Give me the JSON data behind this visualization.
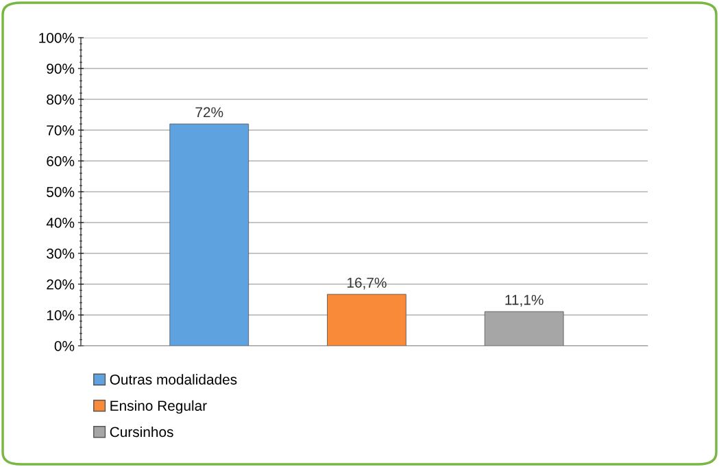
{
  "chart_data": {
    "type": "bar",
    "categories": [
      null,
      null,
      null
    ],
    "series": [
      {
        "name": "Outras modalidades",
        "color": "#5fa2e0",
        "values": [
          72,
          null,
          null
        ],
        "value_labels": [
          "72%",
          null,
          null
        ]
      },
      {
        "name": "Ensino Regular",
        "color": "#f98a3a",
        "values": [
          null,
          16.7,
          null
        ],
        "value_labels": [
          null,
          "16,7%",
          null
        ]
      },
      {
        "name": "Cursinhos",
        "color": "#a6a6a6",
        "values": [
          null,
          null,
          11.1
        ],
        "value_labels": [
          null,
          null,
          "11,1%"
        ]
      }
    ],
    "ylim": [
      0,
      100
    ],
    "yticks": [
      {
        "value": 0,
        "label": "0%"
      },
      {
        "value": 10,
        "label": "10%"
      },
      {
        "value": 20,
        "label": "20%"
      },
      {
        "value": 30,
        "label": "30%"
      },
      {
        "value": 40,
        "label": "40%"
      },
      {
        "value": 50,
        "label": "50%"
      },
      {
        "value": 60,
        "label": "60%"
      },
      {
        "value": 70,
        "label": "70%"
      },
      {
        "value": 80,
        "label": "80%"
      },
      {
        "value": 90,
        "label": "90%"
      },
      {
        "value": 100,
        "label": "100%"
      }
    ],
    "grid": "y",
    "legend": "bottom left"
  }
}
